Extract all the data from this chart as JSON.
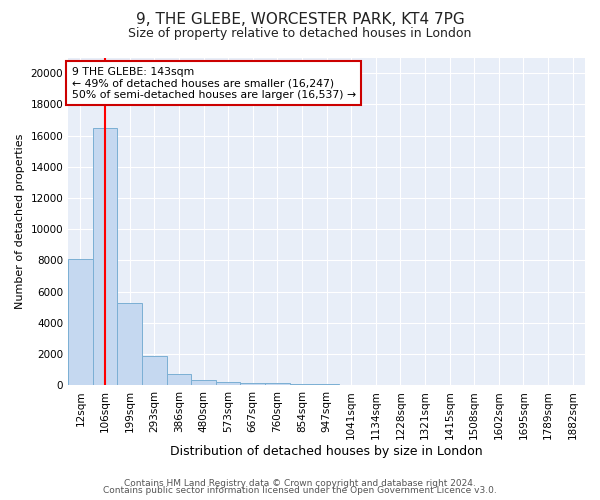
{
  "title1": "9, THE GLEBE, WORCESTER PARK, KT4 7PG",
  "title2": "Size of property relative to detached houses in London",
  "xlabel": "Distribution of detached houses by size in London",
  "ylabel": "Number of detached properties",
  "categories": [
    "12sqm",
    "106sqm",
    "199sqm",
    "293sqm",
    "386sqm",
    "480sqm",
    "573sqm",
    "667sqm",
    "760sqm",
    "854sqm",
    "947sqm",
    "1041sqm",
    "1134sqm",
    "1228sqm",
    "1321sqm",
    "1415sqm",
    "1508sqm",
    "1602sqm",
    "1695sqm",
    "1789sqm",
    "1882sqm"
  ],
  "values": [
    8100,
    16500,
    5300,
    1850,
    750,
    310,
    210,
    175,
    140,
    90,
    55,
    45,
    35,
    25,
    18,
    13,
    10,
    8,
    6,
    5,
    4
  ],
  "bar_color": "#c5d8f0",
  "bar_edge_color": "#7bafd4",
  "bg_color": "#e8eef8",
  "grid_color": "#ffffff",
  "red_line_x": 1.0,
  "annotation_text": "9 THE GLEBE: 143sqm\n← 49% of detached houses are smaller (16,247)\n50% of semi-detached houses are larger (16,537) →",
  "annotation_box_facecolor": "#ffffff",
  "annotation_box_edgecolor": "#cc0000",
  "ylim": [
    0,
    21000
  ],
  "yticks": [
    0,
    2000,
    4000,
    6000,
    8000,
    10000,
    12000,
    14000,
    16000,
    18000,
    20000
  ],
  "title1_fontsize": 11,
  "title2_fontsize": 9,
  "ylabel_fontsize": 8,
  "xlabel_fontsize": 9,
  "tick_fontsize": 7.5,
  "footer1": "Contains HM Land Registry data © Crown copyright and database right 2024.",
  "footer2": "Contains public sector information licensed under the Open Government Licence v3.0.",
  "footer_fontsize": 6.5,
  "fig_facecolor": "#ffffff"
}
